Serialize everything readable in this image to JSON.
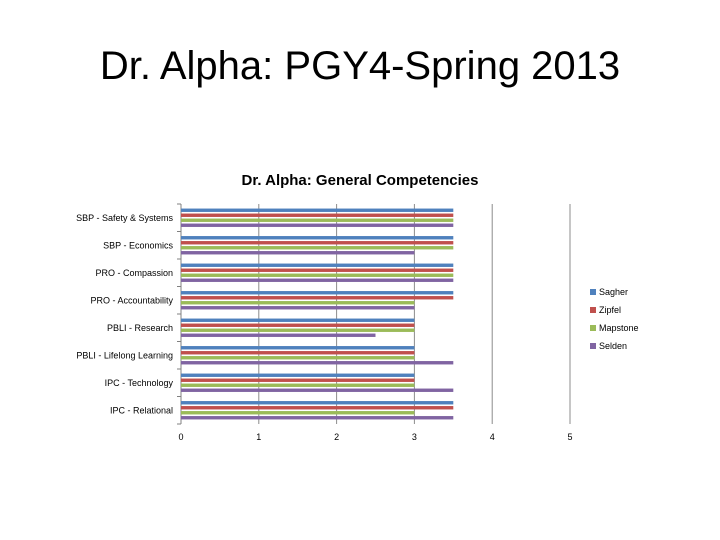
{
  "slide": {
    "title": "Dr. Alpha: PGY4-Spring 2013"
  },
  "chart_data": {
    "type": "bar",
    "orientation": "horizontal",
    "title": "Dr. Alpha: General Competencies",
    "categories": [
      "SBP - Safety & Systems",
      "SBP - Economics",
      "PRO - Compassion",
      "PRO - Accountability",
      "PBLI - Research",
      "PBLI - Lifelong Learning",
      "IPC - Technology",
      "IPC - Relational"
    ],
    "series": [
      {
        "name": "Sagher",
        "color": "#4f81bd",
        "values": [
          3.5,
          3.5,
          3.5,
          3.5,
          3,
          3,
          3,
          3.5
        ]
      },
      {
        "name": "Zipfel",
        "color": "#c0504d",
        "values": [
          3.5,
          3.5,
          3.5,
          3.5,
          3,
          3,
          3,
          3.5
        ]
      },
      {
        "name": "Mapstone",
        "color": "#9bbb59",
        "values": [
          3.5,
          3.5,
          3.5,
          3,
          3,
          3,
          3,
          3
        ]
      },
      {
        "name": "Selden",
        "color": "#8064a2",
        "values": [
          3.5,
          3,
          3.5,
          3,
          2.5,
          3.5,
          3.5,
          3.5
        ]
      }
    ],
    "xlim": [
      0,
      5
    ],
    "x_ticks": [
      "0",
      "1",
      "2",
      "3",
      "4",
      "5"
    ],
    "xlabel": "",
    "ylabel": "",
    "grid": "vertical major gridlines",
    "legend_position": "right"
  }
}
